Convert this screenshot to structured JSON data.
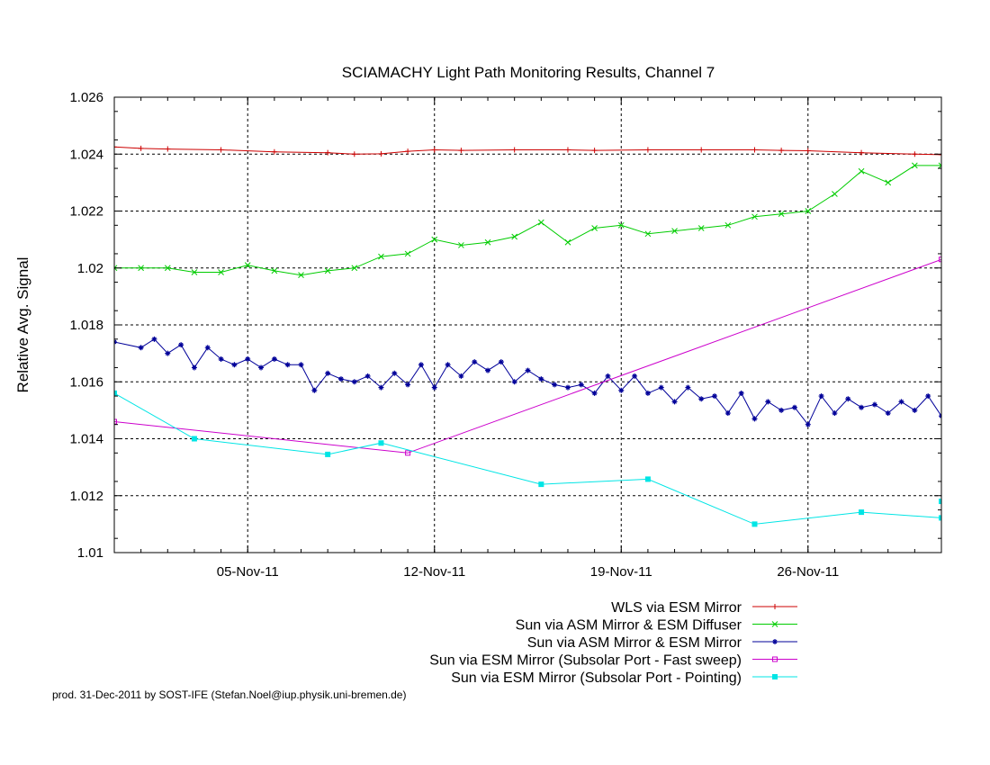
{
  "chart_data": {
    "type": "line",
    "title": "SCIAMACHY Light Path Monitoring Results, Channel 7",
    "xlabel": "",
    "ylabel": "Relative Avg. Signal",
    "x_type": "date",
    "xlim": [
      "2011-10-31",
      "2011-12-01"
    ],
    "ylim": [
      1.01,
      1.026
    ],
    "grid": true,
    "legend_position": "bottom-right",
    "x_ticks": [
      {
        "date": "2011-11-05",
        "label": "05-Nov-11"
      },
      {
        "date": "2011-11-12",
        "label": "12-Nov-11"
      },
      {
        "date": "2011-11-19",
        "label": "19-Nov-11"
      },
      {
        "date": "2011-11-26",
        "label": "26-Nov-11"
      }
    ],
    "y_ticks": [
      {
        "value": 1.01,
        "label": "1.01"
      },
      {
        "value": 1.012,
        "label": "1.012"
      },
      {
        "value": 1.014,
        "label": "1.014"
      },
      {
        "value": 1.016,
        "label": "1.016"
      },
      {
        "value": 1.018,
        "label": "1.018"
      },
      {
        "value": 1.02,
        "label": "1.02"
      },
      {
        "value": 1.022,
        "label": "1.022"
      },
      {
        "value": 1.024,
        "label": "1.024"
      },
      {
        "value": 1.026,
        "label": "1.026"
      }
    ],
    "series": [
      {
        "name": "WLS via ESM Mirror",
        "color": "#cc0000",
        "marker": "plus",
        "points": [
          [
            "2011-10-31",
            1.02425
          ],
          [
            "2011-11-01",
            1.0242
          ],
          [
            "2011-11-02",
            1.02418
          ],
          [
            "2011-11-04",
            1.02415
          ],
          [
            "2011-11-06",
            1.02408
          ],
          [
            "2011-11-08",
            1.02405
          ],
          [
            "2011-11-09",
            1.024
          ],
          [
            "2011-11-10",
            1.02401
          ],
          [
            "2011-11-11",
            1.0241
          ],
          [
            "2011-11-12",
            1.02415
          ],
          [
            "2011-11-13",
            1.02413
          ],
          [
            "2011-11-15",
            1.02415
          ],
          [
            "2011-11-17",
            1.02415
          ],
          [
            "2011-11-18",
            1.02413
          ],
          [
            "2011-11-20",
            1.02415
          ],
          [
            "2011-11-22",
            1.02415
          ],
          [
            "2011-11-24",
            1.02415
          ],
          [
            "2011-11-25",
            1.02413
          ],
          [
            "2011-11-26",
            1.02412
          ],
          [
            "2011-11-28",
            1.02405
          ],
          [
            "2011-11-30",
            1.024
          ],
          [
            "2011-12-01",
            1.02398
          ]
        ]
      },
      {
        "name": "Sun via ASM Mirror & ESM Diffuser",
        "color": "#00cc00",
        "marker": "x",
        "points": [
          [
            "2011-10-31",
            1.02
          ],
          [
            "2011-11-01",
            1.02
          ],
          [
            "2011-11-02",
            1.02
          ],
          [
            "2011-11-03",
            1.01985
          ],
          [
            "2011-11-04",
            1.01985
          ],
          [
            "2011-11-05",
            1.0201
          ],
          [
            "2011-11-06",
            1.0199
          ],
          [
            "2011-11-07",
            1.01975
          ],
          [
            "2011-11-08",
            1.0199
          ],
          [
            "2011-11-09",
            1.02
          ],
          [
            "2011-11-10",
            1.0204
          ],
          [
            "2011-11-11",
            1.0205
          ],
          [
            "2011-11-12",
            1.021
          ],
          [
            "2011-11-13",
            1.0208
          ],
          [
            "2011-11-14",
            1.0209
          ],
          [
            "2011-11-15",
            1.0211
          ],
          [
            "2011-11-16",
            1.0216
          ],
          [
            "2011-11-17",
            1.0209
          ],
          [
            "2011-11-18",
            1.0214
          ],
          [
            "2011-11-19",
            1.0215
          ],
          [
            "2011-11-20",
            1.0212
          ],
          [
            "2011-11-21",
            1.0213
          ],
          [
            "2011-11-22",
            1.0214
          ],
          [
            "2011-11-23",
            1.0215
          ],
          [
            "2011-11-24",
            1.0218
          ],
          [
            "2011-11-25",
            1.0219
          ],
          [
            "2011-11-26",
            1.022
          ],
          [
            "2011-11-27",
            1.0226
          ],
          [
            "2011-11-28",
            1.0234
          ],
          [
            "2011-11-29",
            1.023
          ],
          [
            "2011-11-30",
            1.0236
          ],
          [
            "2011-12-01",
            1.0236
          ]
        ]
      },
      {
        "name": "Sun via ASM Mirror & ESM Mirror",
        "color": "#000099",
        "marker": "star",
        "points": [
          [
            "2011-10-31",
            1.0174
          ],
          [
            "2011-11-01",
            1.0172
          ],
          [
            "2011-11-01T12",
            1.0175
          ],
          [
            "2011-11-02",
            1.017
          ],
          [
            "2011-11-02T12",
            1.0173
          ],
          [
            "2011-11-03",
            1.0165
          ],
          [
            "2011-11-03T12",
            1.0172
          ],
          [
            "2011-11-04",
            1.0168
          ],
          [
            "2011-11-04T12",
            1.0166
          ],
          [
            "2011-11-05",
            1.0168
          ],
          [
            "2011-11-05T12",
            1.0165
          ],
          [
            "2011-11-06",
            1.0168
          ],
          [
            "2011-11-06T12",
            1.0166
          ],
          [
            "2011-11-07",
            1.0166
          ],
          [
            "2011-11-07T12",
            1.0157
          ],
          [
            "2011-11-08",
            1.0163
          ],
          [
            "2011-11-08T12",
            1.0161
          ],
          [
            "2011-11-09",
            1.016
          ],
          [
            "2011-11-09T12",
            1.0162
          ],
          [
            "2011-11-10",
            1.0158
          ],
          [
            "2011-11-10T12",
            1.0163
          ],
          [
            "2011-11-11",
            1.0159
          ],
          [
            "2011-11-11T12",
            1.0166
          ],
          [
            "2011-11-12",
            1.0158
          ],
          [
            "2011-11-12T12",
            1.0166
          ],
          [
            "2011-11-13",
            1.0162
          ],
          [
            "2011-11-13T12",
            1.0167
          ],
          [
            "2011-11-14",
            1.0164
          ],
          [
            "2011-11-14T12",
            1.0167
          ],
          [
            "2011-11-15",
            1.016
          ],
          [
            "2011-11-15T12",
            1.0164
          ],
          [
            "2011-11-16",
            1.0161
          ],
          [
            "2011-11-16T12",
            1.0159
          ],
          [
            "2011-11-17",
            1.0158
          ],
          [
            "2011-11-17T12",
            1.0159
          ],
          [
            "2011-11-18",
            1.0156
          ],
          [
            "2011-11-18T12",
            1.0162
          ],
          [
            "2011-11-19",
            1.0157
          ],
          [
            "2011-11-19T12",
            1.0162
          ],
          [
            "2011-11-20",
            1.0156
          ],
          [
            "2011-11-20T12",
            1.0158
          ],
          [
            "2011-11-21",
            1.0153
          ],
          [
            "2011-11-21T12",
            1.0158
          ],
          [
            "2011-11-22",
            1.0154
          ],
          [
            "2011-11-22T12",
            1.0155
          ],
          [
            "2011-11-23",
            1.0149
          ],
          [
            "2011-11-23T12",
            1.0156
          ],
          [
            "2011-11-24",
            1.0147
          ],
          [
            "2011-11-24T12",
            1.0153
          ],
          [
            "2011-11-25",
            1.015
          ],
          [
            "2011-11-25T12",
            1.0151
          ],
          [
            "2011-11-26",
            1.0145
          ],
          [
            "2011-11-26T12",
            1.0155
          ],
          [
            "2011-11-27",
            1.0149
          ],
          [
            "2011-11-27T12",
            1.0154
          ],
          [
            "2011-11-28",
            1.0151
          ],
          [
            "2011-11-28T12",
            1.0152
          ],
          [
            "2011-11-29",
            1.0149
          ],
          [
            "2011-11-29T12",
            1.0153
          ],
          [
            "2011-11-30",
            1.015
          ],
          [
            "2011-11-30T12",
            1.0155
          ],
          [
            "2011-12-01",
            1.0148
          ]
        ]
      },
      {
        "name": "Sun via ESM Mirror (Subsolar Port - Fast sweep)",
        "color": "#cc00cc",
        "marker": "square-open",
        "points": [
          [
            "2011-10-31",
            1.0146
          ],
          [
            "2011-11-11",
            1.0135
          ],
          [
            "2011-12-01",
            1.0203
          ]
        ]
      },
      {
        "name": "Sun via ESM Mirror (Subsolar Port - Pointing)",
        "color": "#00e5e5",
        "marker": "square-filled",
        "points": [
          [
            "2011-10-31",
            1.0156
          ],
          [
            "2011-11-03",
            1.014
          ],
          [
            "2011-11-08",
            1.01345
          ],
          [
            "2011-11-10",
            1.01385
          ],
          [
            "2011-11-16",
            1.0124
          ],
          [
            "2011-11-20",
            1.01258
          ],
          [
            "2011-11-24",
            1.011
          ],
          [
            "2011-11-28",
            1.01142
          ],
          [
            "2011-11-31",
            1.01122
          ],
          [
            "2011-12-01",
            1.0118
          ]
        ]
      }
    ]
  },
  "footer": {
    "credit": "prod. 31-Dec-2011 by SOST-IFE (Stefan.Noel@iup.physik.uni-bremen.de)"
  }
}
